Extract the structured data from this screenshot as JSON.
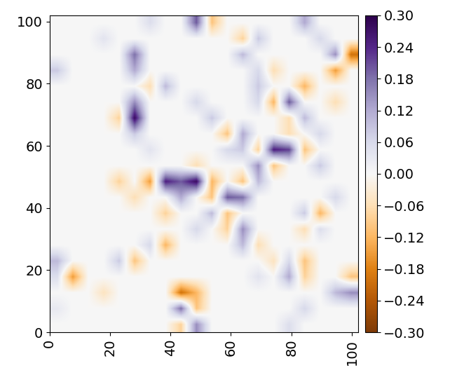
{
  "chart_data": {
    "type": "heatmap",
    "color": "PuOr",
    "xlim": [
      0,
      102
    ],
    "ylim": [
      0,
      102
    ],
    "xticks": [
      0,
      20,
      40,
      60,
      80,
      100
    ],
    "yticks": [
      0,
      20,
      40,
      60,
      80,
      100
    ],
    "color_range": [
      -0.3,
      0.3
    ],
    "colorbar_ticks": [
      {
        "value": 0.3,
        "label": "0.30"
      },
      {
        "value": 0.24,
        "label": "0.24"
      },
      {
        "value": 0.18,
        "label": "0.18"
      },
      {
        "value": 0.12,
        "label": "0.12"
      },
      {
        "value": 0.06,
        "label": "0.06"
      },
      {
        "value": 0.0,
        "label": "0.00"
      },
      {
        "value": -0.06,
        "label": "−0.06"
      },
      {
        "value": -0.12,
        "label": "−0.12"
      },
      {
        "value": -0.18,
        "label": "−0.18"
      },
      {
        "value": -0.24,
        "label": "−0.24"
      },
      {
        "value": -0.3,
        "label": "−0.30"
      }
    ],
    "cells": [
      [
        0,
        0,
        0,
        0,
        0,
        0,
        0,
        0,
        -0.08,
        0.15,
        0,
        0,
        0,
        0,
        0,
        0.05,
        0,
        0,
        0,
        0
      ],
      [
        0.03,
        0,
        0,
        0,
        0,
        0,
        0,
        0,
        0.18,
        -0.1,
        0,
        0,
        0,
        0,
        0,
        0,
        0.06,
        0,
        0,
        0
      ],
      [
        0,
        0,
        0,
        -0.05,
        0,
        0,
        0,
        0,
        -0.2,
        -0.12,
        0,
        0,
        0,
        0,
        0,
        0,
        0,
        0,
        0.1,
        0.15
      ],
      [
        0.05,
        -0.15,
        0,
        0,
        0,
        0,
        0,
        0,
        0,
        0,
        0,
        0,
        0,
        0.04,
        0,
        0.12,
        -0.08,
        0,
        0,
        -0.1
      ],
      [
        0.1,
        0,
        0,
        0,
        0.08,
        -0.1,
        0,
        0,
        0,
        0,
        0,
        0,
        0,
        0,
        -0.05,
        0.06,
        -0.1,
        0,
        0,
        0
      ],
      [
        0,
        0,
        0,
        0,
        0,
        0,
        0.06,
        -0.12,
        0,
        0,
        0,
        0,
        0.1,
        -0.06,
        0,
        0,
        0,
        0,
        0,
        0
      ],
      [
        0,
        0,
        0,
        0,
        0,
        0,
        0,
        0,
        0,
        0.06,
        0,
        -0.08,
        0.15,
        0,
        0,
        0,
        -0.06,
        0.05,
        0,
        0
      ],
      [
        0,
        0,
        0,
        0,
        0,
        0,
        0,
        -0.08,
        0,
        0,
        0.1,
        -0.1,
        0,
        0,
        0,
        0,
        0.08,
        -0.12,
        0,
        0
      ],
      [
        0,
        0,
        0,
        0,
        0,
        -0.06,
        0,
        0,
        0.12,
        0,
        -0.1,
        0.2,
        0.18,
        0,
        0,
        0,
        0,
        0,
        0.06,
        0
      ],
      [
        0,
        0,
        0,
        0,
        -0.08,
        0,
        -0.15,
        0.25,
        0.2,
        0.28,
        -0.12,
        0,
        -0.1,
        0.1,
        0,
        0,
        0,
        0,
        0,
        0
      ],
      [
        0,
        0,
        0,
        0,
        0,
        0,
        0,
        0,
        0,
        -0.06,
        0,
        0,
        0,
        0.15,
        -0.1,
        0,
        0,
        0.08,
        0,
        0
      ],
      [
        0,
        0,
        0,
        0,
        0,
        0,
        0.04,
        0,
        0,
        0,
        0,
        0.06,
        0.08,
        -0.08,
        0.25,
        0.22,
        -0.1,
        0,
        0,
        0
      ],
      [
        0,
        0,
        0,
        0,
        0,
        0.08,
        0,
        0,
        0,
        0,
        0,
        -0.1,
        0.12,
        0,
        0,
        -0.06,
        0,
        0.06,
        0,
        0
      ],
      [
        0,
        0,
        0,
        0,
        -0.08,
        0.28,
        0,
        0,
        0,
        0,
        0.08,
        0,
        0,
        0,
        0,
        -0.06,
        0.1,
        0,
        0,
        0
      ],
      [
        0,
        0,
        0,
        0,
        0,
        0.15,
        0,
        0,
        0,
        0.06,
        0,
        0,
        0,
        0.06,
        -0.12,
        0.2,
        0,
        0,
        -0.06,
        0
      ],
      [
        0,
        0,
        0,
        0,
        0,
        0,
        -0.06,
        0.1,
        0,
        0,
        0,
        0,
        0,
        0.08,
        0,
        0,
        -0.12,
        0,
        0,
        0
      ],
      [
        0.08,
        0,
        0,
        0,
        0,
        0.12,
        0,
        0,
        0,
        0,
        0,
        0,
        0,
        0.06,
        -0.06,
        0,
        0,
        0,
        -0.15,
        0
      ],
      [
        0,
        0,
        0,
        0,
        0,
        0.18,
        0,
        0,
        0,
        0,
        0,
        0,
        0.1,
        0,
        0,
        0,
        0,
        0,
        0.15,
        -0.2
      ],
      [
        0,
        0,
        0,
        0.04,
        0,
        0,
        0,
        0,
        0,
        0,
        0,
        0,
        -0.08,
        0.08,
        0,
        0,
        0,
        0.06,
        0,
        0
      ],
      [
        0,
        0,
        0,
        0,
        0,
        0,
        0.05,
        0,
        0,
        0.2,
        -0.1,
        0,
        0,
        0,
        0,
        0,
        0.12,
        0,
        0,
        0
      ]
    ]
  }
}
